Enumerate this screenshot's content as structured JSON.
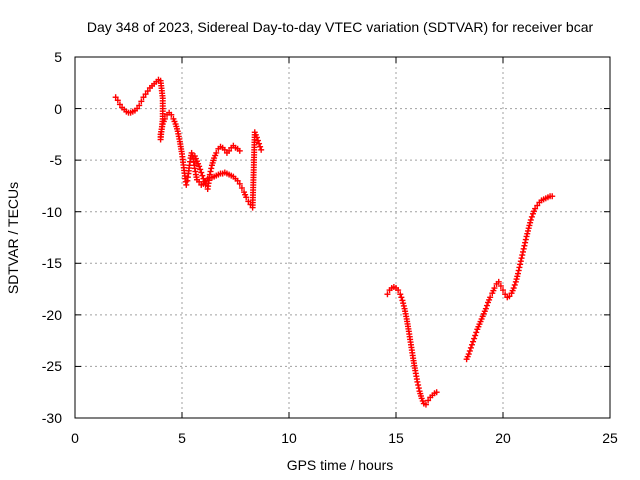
{
  "chart_data": {
    "type": "scatter",
    "title": "Day 348 of 2023, Sidereal Day-to-day VTEC variation (SDTVAR) for receiver bcar",
    "xlabel": "GPS time / hours",
    "ylabel": "SDTVAR / TECUs",
    "xlim": [
      0,
      25
    ],
    "ylim": [
      -30,
      5
    ],
    "xticks": [
      "0",
      "5",
      "10",
      "15",
      "20",
      "25"
    ],
    "yticks": [
      "5",
      "0",
      "-5",
      "-10",
      "-15",
      "-20",
      "-25",
      "-30"
    ],
    "grid": true,
    "marker": "plus",
    "color": "#ff0000",
    "series": [
      {
        "name": "SDTVAR",
        "x": [
          1.9,
          2.0,
          2.1,
          2.2,
          2.3,
          2.4,
          2.5,
          2.6,
          2.7,
          2.8,
          2.9,
          3.0,
          3.1,
          3.2,
          3.3,
          3.4,
          3.5,
          3.6,
          3.7,
          3.8,
          3.9,
          4.0,
          4.1,
          4.1,
          4.0,
          4.0,
          4.1,
          4.2,
          4.3,
          4.4,
          4.5,
          4.6,
          4.7,
          4.8,
          4.9,
          5.0,
          5.05,
          5.1,
          5.15,
          5.2,
          5.25,
          5.3,
          5.35,
          5.4,
          5.45,
          5.5,
          5.55,
          5.6,
          5.65,
          5.7,
          5.8,
          5.9,
          6.0,
          6.1,
          6.2,
          6.3,
          6.4,
          6.5,
          6.6,
          6.7,
          6.8,
          6.9,
          7.0,
          7.1,
          7.2,
          7.3,
          7.4,
          7.5,
          7.6,
          7.7,
          7.8,
          7.9,
          8.0,
          8.1,
          8.2,
          8.3,
          8.4,
          8.5,
          8.6,
          8.7,
          5.6,
          5.7,
          5.8,
          5.9,
          6.0,
          6.1,
          6.2,
          6.3,
          6.4,
          6.5,
          6.6,
          6.7,
          6.8,
          6.9,
          7.0,
          7.1,
          7.2,
          7.3,
          7.4,
          7.5,
          7.6,
          7.7,
          14.6,
          14.7,
          14.8,
          14.9,
          15.0,
          15.1,
          15.2,
          15.3,
          15.4,
          15.5,
          15.6,
          15.7,
          15.8,
          15.9,
          16.0,
          16.1,
          16.2,
          16.3,
          16.4,
          16.5,
          16.6,
          16.7,
          16.8,
          16.9,
          18.3,
          18.4,
          18.5,
          18.6,
          18.7,
          18.8,
          18.9,
          19.0,
          19.1,
          19.2,
          19.3,
          19.4,
          19.5,
          19.6,
          19.7,
          19.8,
          19.9,
          20.0,
          20.1,
          20.2,
          20.3,
          20.4,
          20.5,
          20.6,
          20.7,
          20.8,
          20.9,
          21.0,
          21.1,
          21.2,
          21.3,
          21.4,
          21.5,
          21.6,
          21.7,
          21.8,
          21.9,
          22.0,
          22.1,
          22.2,
          22.3
        ],
        "y": [
          1.1,
          0.8,
          0.4,
          0.1,
          -0.1,
          -0.3,
          -0.4,
          -0.4,
          -0.3,
          -0.2,
          0.0,
          0.3,
          0.7,
          1.1,
          1.4,
          1.7,
          2.0,
          2.2,
          2.4,
          2.6,
          2.8,
          2.7,
          1.0,
          -1.0,
          -3.0,
          -2.5,
          -1.5,
          -1.0,
          -0.6,
          -0.4,
          -0.6,
          -1.0,
          -1.5,
          -2.2,
          -3.2,
          -4.4,
          -5.2,
          -6.0,
          -6.8,
          -7.4,
          -7.0,
          -6.3,
          -5.5,
          -4.8,
          -4.3,
          -4.6,
          -5.2,
          -5.8,
          -6.4,
          -6.9,
          -7.1,
          -7.4,
          -7.3,
          -7.0,
          -6.8,
          -6.7,
          -6.7,
          -6.6,
          -6.5,
          -6.4,
          -6.3,
          -6.3,
          -6.2,
          -6.3,
          -6.4,
          -6.5,
          -6.6,
          -6.8,
          -7.0,
          -7.3,
          -7.7,
          -8.1,
          -8.6,
          -9.0,
          -9.3,
          -9.6,
          -2.3,
          -2.8,
          -3.4,
          -4.0,
          -4.6,
          -5.1,
          -5.6,
          -6.2,
          -6.8,
          -7.4,
          -7.8,
          -6.4,
          -5.5,
          -4.8,
          -4.3,
          -3.9,
          -3.7,
          -3.8,
          -4.0,
          -4.3,
          -4.1,
          -3.8,
          -3.6,
          -3.8,
          -3.9,
          -4.1,
          -18.0,
          -17.6,
          -17.4,
          -17.3,
          -17.4,
          -17.6,
          -18.0,
          -18.6,
          -19.4,
          -20.4,
          -21.6,
          -22.9,
          -24.2,
          -25.4,
          -26.5,
          -27.4,
          -28.1,
          -28.6,
          -28.7,
          -28.3,
          -28.0,
          -27.8,
          -27.6,
          -27.5,
          -24.3,
          -23.8,
          -23.2,
          -22.6,
          -22.0,
          -21.4,
          -20.9,
          -20.4,
          -19.9,
          -19.4,
          -18.8,
          -18.3,
          -17.9,
          -17.4,
          -17.0,
          -16.8,
          -17.2,
          -17.6,
          -18.0,
          -18.3,
          -18.2,
          -17.9,
          -17.4,
          -16.8,
          -16.0,
          -15.1,
          -14.2,
          -13.3,
          -12.4,
          -11.6,
          -10.8,
          -10.2,
          -9.7,
          -9.4,
          -9.1,
          -8.9,
          -8.8,
          -8.7,
          -8.6,
          -8.5,
          -8.5
        ]
      }
    ]
  }
}
